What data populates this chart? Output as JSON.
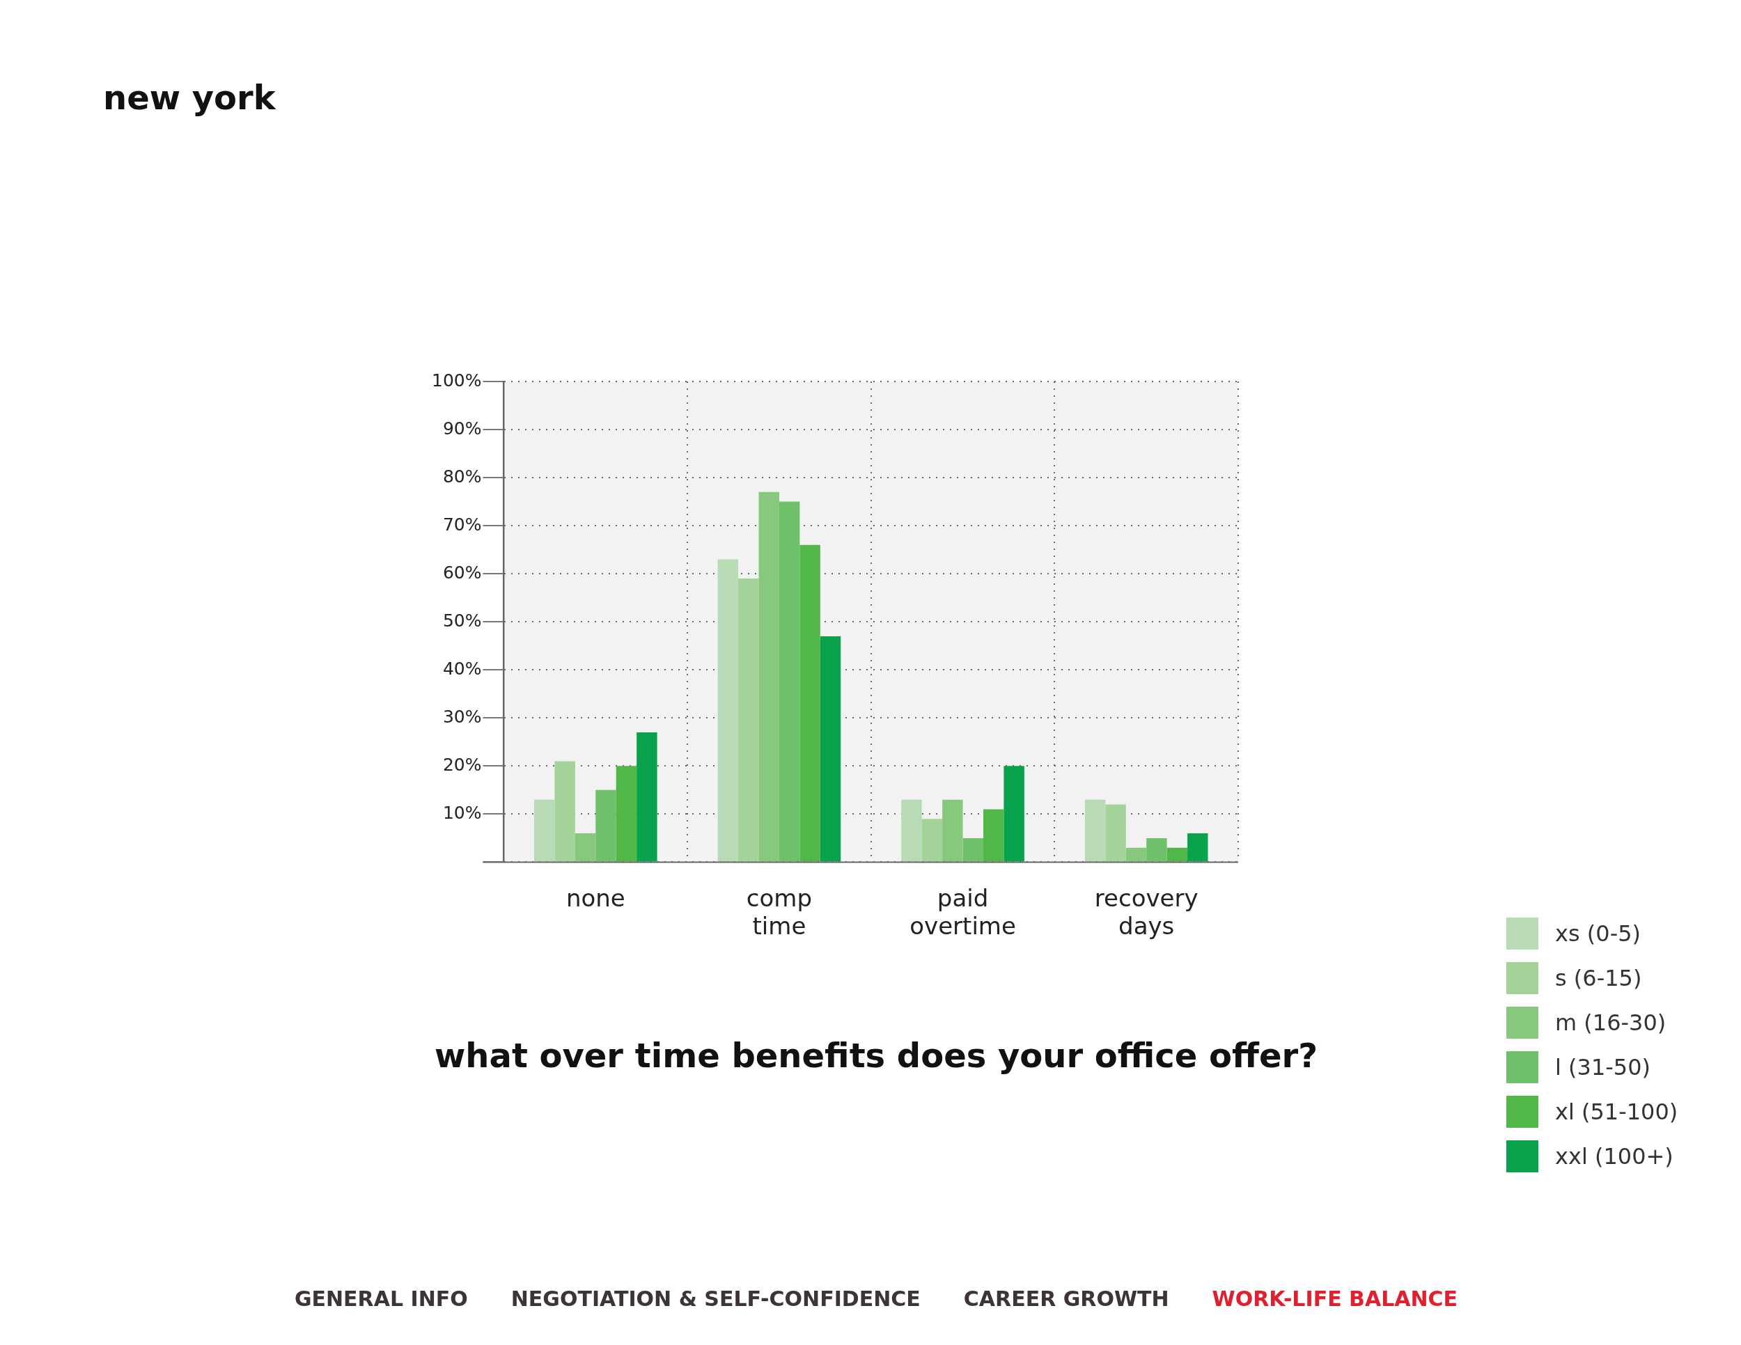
{
  "chart_data": {
    "type": "bar",
    "title": "new york",
    "subtitle": "what over time benefits does your office offer?",
    "categories": [
      "none",
      "comp time",
      "paid overtime",
      "recovery days"
    ],
    "series": [
      {
        "name": "xs (0-5)",
        "color": "#b8dbb5",
        "values": [
          13,
          63,
          13,
          13
        ]
      },
      {
        "name": "s (6-15)",
        "color": "#a3d398",
        "values": [
          21,
          59,
          9,
          12
        ]
      },
      {
        "name": "m (16-30)",
        "color": "#88c87e",
        "values": [
          6,
          77,
          13,
          3
        ]
      },
      {
        "name": "l (31-50)",
        "color": "#6fc06a",
        "values": [
          15,
          75,
          5,
          5
        ]
      },
      {
        "name": "xl (51-100)",
        "color": "#50b748",
        "values": [
          20,
          66,
          11,
          3
        ]
      },
      {
        "name": "xxl (100+)",
        "color": "#08a24c",
        "values": [
          27,
          47,
          20,
          6
        ]
      }
    ],
    "ylim": [
      0,
      100
    ],
    "yticks": [
      {
        "value": 0,
        "label": null
      },
      {
        "value": 10,
        "label": "10%"
      },
      {
        "value": 20,
        "label": "20%"
      },
      {
        "value": 30,
        "label": "30%"
      },
      {
        "value": 40,
        "label": "40%"
      },
      {
        "value": 50,
        "label": "50%"
      },
      {
        "value": 60,
        "label": "60%"
      },
      {
        "value": 70,
        "label": "70%"
      },
      {
        "value": 80,
        "label": "80%"
      },
      {
        "value": 90,
        "label": "90%"
      },
      {
        "value": 100,
        "label": "100%"
      }
    ],
    "grid": true,
    "legend": "bottom right",
    "annotations": [
      "GENERAL INFO",
      "NEGOTIATION & SELF-CONFIDENCE",
      "CAREER GROWTH",
      "WORK-LIFE BALANCE"
    ]
  }
}
